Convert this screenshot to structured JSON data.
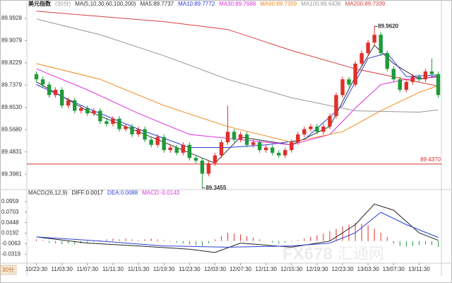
{
  "chart_data": [
    {
      "type": "candlestick",
      "title": "美元指数",
      "period": "(30分)",
      "indicator": "MA(5,10,30,60,100,200)",
      "up_color": "#e0302a",
      "down_color": "#1f9a3a",
      "xlim": [
        -1.5,
        63.5
      ],
      "ylim": [
        89.3394,
        90.0356
      ],
      "yticks": [
        89.3981,
        89.4831,
        {
          "value": 89.568,
          "label": "89.5680"
        },
        {
          "value": 89.653,
          "label": "89.6530"
        },
        89.7379,
        89.8229,
        89.9079,
        89.9928
      ],
      "ohlc": [
        [
          89.78,
          89.79,
          89.75,
          89.76
        ],
        [
          89.76,
          89.77,
          89.73,
          89.74
        ],
        [
          89.74,
          89.75,
          89.69,
          89.7
        ],
        [
          89.7,
          89.73,
          89.69,
          89.72
        ],
        [
          89.72,
          89.73,
          89.65,
          89.66
        ],
        [
          89.66,
          89.69,
          89.65,
          89.68
        ],
        [
          89.68,
          89.69,
          89.63,
          89.64
        ],
        [
          89.64,
          89.66,
          89.63,
          89.65
        ],
        [
          89.65,
          89.66,
          89.62,
          89.63
        ],
        [
          89.63,
          89.65,
          89.62,
          89.64
        ],
        [
          89.64,
          89.65,
          89.59,
          89.6
        ],
        [
          89.6,
          89.61,
          89.58,
          89.59
        ],
        [
          89.59,
          89.62,
          89.58,
          89.61
        ],
        [
          89.61,
          89.62,
          89.56,
          89.57
        ],
        [
          89.57,
          89.59,
          89.56,
          89.58
        ],
        [
          89.58,
          89.59,
          89.54,
          89.55
        ],
        [
          89.55,
          89.58,
          89.54,
          89.57
        ],
        [
          89.57,
          89.58,
          89.52,
          89.53
        ],
        [
          89.53,
          89.54,
          89.5,
          89.51
        ],
        [
          89.51,
          89.55,
          89.5,
          89.54
        ],
        [
          89.54,
          89.55,
          89.48,
          89.49
        ],
        [
          89.49,
          89.51,
          89.48,
          89.5
        ],
        [
          89.5,
          89.51,
          89.47,
          89.48
        ],
        [
          89.48,
          89.52,
          89.47,
          89.51
        ],
        [
          89.51,
          89.52,
          89.45,
          89.46
        ],
        [
          89.46,
          89.47,
          89.44,
          89.45
        ],
        [
          89.45,
          89.46,
          89.3455,
          89.4
        ],
        [
          89.4,
          89.45,
          89.39,
          89.44
        ],
        [
          89.44,
          89.48,
          89.43,
          89.47
        ],
        [
          89.47,
          89.53,
          89.46,
          89.52
        ],
        [
          89.52,
          89.66,
          89.51,
          89.56
        ],
        [
          89.56,
          89.57,
          89.52,
          89.53
        ],
        [
          89.53,
          89.56,
          89.52,
          89.55
        ],
        [
          89.55,
          89.56,
          89.5,
          89.51
        ],
        [
          89.51,
          89.53,
          89.5,
          89.52
        ],
        [
          89.52,
          89.53,
          89.48,
          89.49
        ],
        [
          89.49,
          89.51,
          89.48,
          89.5
        ],
        [
          89.5,
          89.51,
          89.47,
          89.48
        ],
        [
          89.48,
          89.49,
          89.46,
          89.47
        ],
        [
          89.47,
          89.5,
          89.46,
          89.49
        ],
        [
          89.49,
          89.53,
          89.48,
          89.52
        ],
        [
          89.52,
          89.56,
          89.51,
          89.55
        ],
        [
          89.55,
          89.58,
          89.54,
          89.57
        ],
        [
          89.57,
          89.59,
          89.56,
          89.58
        ],
        [
          89.58,
          89.59,
          89.55,
          89.56
        ],
        [
          89.56,
          89.59,
          89.55,
          89.58
        ],
        [
          89.58,
          89.63,
          89.57,
          89.62
        ],
        [
          89.62,
          89.71,
          89.61,
          89.7
        ],
        [
          89.7,
          89.77,
          89.69,
          89.76
        ],
        [
          89.76,
          89.77,
          89.73,
          89.74
        ],
        [
          89.74,
          89.83,
          89.73,
          89.82
        ],
        [
          89.82,
          89.87,
          89.81,
          89.86
        ],
        [
          89.86,
          89.91,
          89.85,
          89.9
        ],
        [
          89.9,
          89.962,
          89.89,
          89.93
        ],
        [
          89.93,
          89.94,
          89.85,
          89.86
        ],
        [
          89.86,
          89.87,
          89.79,
          89.8
        ],
        [
          89.8,
          89.81,
          89.75,
          89.76
        ],
        [
          89.76,
          89.77,
          89.71,
          89.72
        ],
        [
          89.72,
          89.76,
          89.71,
          89.75
        ],
        [
          89.75,
          89.78,
          89.74,
          89.77
        ],
        [
          89.77,
          89.78,
          89.75,
          89.76
        ],
        [
          89.76,
          89.8,
          89.75,
          89.79
        ],
        [
          89.79,
          89.84,
          89.77,
          89.78
        ],
        [
          89.78,
          89.79,
          89.69,
          89.7
        ]
      ],
      "series": [
        {
          "name": "MA5:89.7737",
          "color": "#333333",
          "x": [
            0,
            8,
            16,
            24,
            28,
            32,
            40,
            46,
            50,
            53,
            56,
            60,
            63
          ],
          "values": [
            89.75,
            89.64,
            89.56,
            89.48,
            89.44,
            89.54,
            89.51,
            89.58,
            89.77,
            89.89,
            89.82,
            89.76,
            89.7737
          ]
        },
        {
          "name": "MA10:89.7772",
          "color": "#2b3fd8",
          "x": [
            0,
            8,
            16,
            24,
            30,
            36,
            42,
            48,
            52,
            55,
            58,
            63
          ],
          "values": [
            89.74,
            89.65,
            89.57,
            89.5,
            89.5,
            89.51,
            89.53,
            89.66,
            89.84,
            89.86,
            89.77,
            89.7772
          ]
        },
        {
          "name": "MA30:89.7688",
          "color": "#e030e0",
          "x": [
            0,
            8,
            16,
            24,
            32,
            40,
            46,
            50,
            54,
            58,
            63
          ],
          "values": [
            89.8,
            89.72,
            89.63,
            89.55,
            89.53,
            89.51,
            89.55,
            89.65,
            89.74,
            89.76,
            89.7688
          ]
        },
        {
          "name": "MA60:89.7359",
          "color": "#f08a1c",
          "x": [
            0,
            10,
            20,
            30,
            40,
            48,
            54,
            60,
            63
          ],
          "values": [
            89.82,
            89.76,
            89.66,
            89.58,
            89.52,
            89.56,
            89.64,
            89.71,
            89.7359
          ]
        },
        {
          "name": "MA100:89.6436",
          "color": "#999999",
          "x": [
            0,
            10,
            20,
            30,
            40,
            50,
            60,
            63
          ],
          "values": [
            89.99,
            89.93,
            89.85,
            89.76,
            89.69,
            89.64,
            89.635,
            89.6436
          ]
        },
        {
          "name": "MA200:89.7339",
          "color": "#d84040",
          "x": [
            0,
            20,
            30,
            40,
            50,
            63
          ],
          "values": [
            90.02,
            89.98,
            89.95,
            89.87,
            89.8,
            89.7339
          ]
        }
      ],
      "reference": {
        "value": 89.437,
        "label": "89.4370",
        "color": "#d83030"
      },
      "annotations": [
        {
          "x": 53,
          "value": 89.962,
          "label": "89.9620"
        },
        {
          "x": 26,
          "value": 89.3455,
          "label": "89.3455"
        }
      ]
    },
    {
      "type": "macd",
      "title": "MACD(26,12,9)",
      "ylim": [
        -0.054,
        0.108
      ],
      "yticks": [
        -0.0319,
        -0.0063,
        0.0192,
        0.0448,
        0.0703,
        0.0959
      ],
      "xticks": [
        {
          "value": 0,
          "label": "10/23:30"
        },
        {
          "value": 4,
          "label": "11/03:30"
        },
        {
          "value": 8,
          "label": "11/07:30"
        },
        {
          "value": 12,
          "label": "11/11:30"
        },
        {
          "value": 16,
          "label": "11/15:30"
        },
        {
          "value": 20,
          "label": "11/19:30"
        },
        {
          "value": 24,
          "label": "11/23:30"
        },
        {
          "value": 28,
          "label": "12/03:30"
        },
        {
          "value": 32,
          "label": "12/07:30"
        },
        {
          "value": 36,
          "label": "12/11:30"
        },
        {
          "value": 40,
          "label": "12/15:30"
        },
        {
          "value": 44,
          "label": "12/19:30"
        },
        {
          "value": 48,
          "label": "12/23:30"
        },
        {
          "value": 52,
          "label": "13/03:30"
        },
        {
          "value": 56,
          "label": "13/07:30"
        },
        {
          "value": 60,
          "label": "13/11:30"
        }
      ],
      "up_color": "#e0302a",
      "down_color": "#1f9a3a",
      "series": [
        {
          "name": "DIFF:0.0017",
          "color": "#222222",
          "x": [
            0,
            8,
            16,
            24,
            28,
            32,
            40,
            46,
            50,
            53,
            56,
            60,
            63
          ],
          "values": [
            0.01,
            -0.005,
            -0.012,
            -0.02,
            -0.028,
            -0.005,
            -0.015,
            0.0,
            0.04,
            0.09,
            0.075,
            0.02,
            0.0017
          ]
        },
        {
          "name": "DEA:0.0088",
          "color": "#2b3fd8",
          "x": [
            0,
            10,
            20,
            30,
            40,
            46,
            50,
            54,
            58,
            63
          ],
          "values": [
            0.01,
            0.0,
            -0.012,
            -0.015,
            -0.012,
            -0.005,
            0.02,
            0.07,
            0.04,
            0.0088
          ]
        },
        {
          "name": "MACD:-0.0143",
          "color": "#e030e0",
          "values": [
            0.004,
            0.002,
            -0.004,
            -0.006,
            -0.008,
            -0.006,
            -0.008,
            -0.006,
            -0.004,
            -0.002,
            0.002,
            0.004,
            0.006,
            0.004,
            0.006,
            0.004,
            0.002,
            0.004,
            0.006,
            0.004,
            0.002,
            -0.002,
            -0.004,
            -0.006,
            -0.008,
            -0.01,
            -0.012,
            -0.006,
            0.004,
            0.012,
            0.02,
            0.018,
            0.016,
            0.012,
            0.008,
            0.004,
            0.0,
            -0.004,
            -0.006,
            -0.004,
            -0.002,
            0.002,
            0.006,
            0.01,
            0.014,
            0.018,
            0.024,
            0.03,
            0.036,
            0.04,
            0.044,
            0.042,
            0.038,
            0.03,
            0.02,
            0.01,
            -0.006,
            -0.012,
            -0.014,
            -0.012,
            -0.01,
            -0.008,
            -0.01,
            -0.0143
          ]
        }
      ]
    }
  ],
  "period_tab": "30分",
  "watermark": {
    "brand": "FX678",
    "name": "汇通网"
  }
}
